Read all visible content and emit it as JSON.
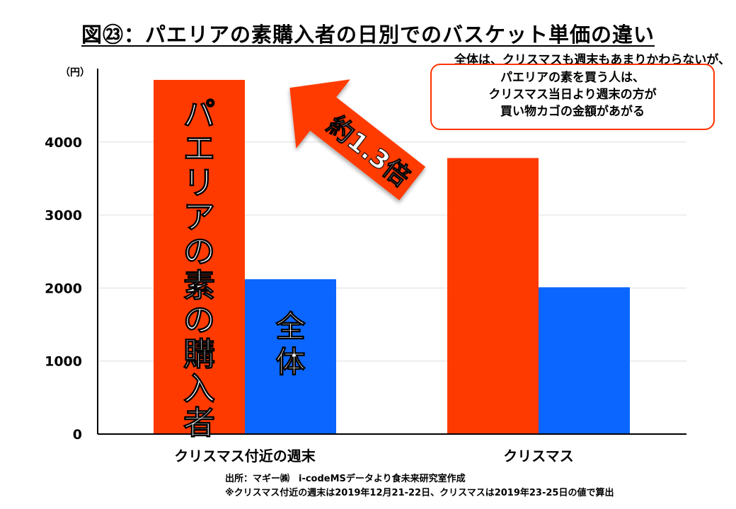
{
  "title": "図㉓：パエリアの素購入者の日別でのバスケット単価の違い",
  "callout": {
    "headline": "全体は、クリスマスも週末もあまりかわらないが、",
    "lines": [
      "パエリアの素を買う人は、",
      "クリスマス当日より週末の方が",
      "買い物カゴの金額があがる"
    ]
  },
  "arrow_label": "約1.3倍",
  "footnote": {
    "source": "出所：マギー㈱　i-codeMSデータより食未来研究室作成",
    "note": "※クリスマス付近の週末は2019年12月21-22日、クリスマスは2019年23-25日の値で算出"
  },
  "colors": {
    "paella": "#ff3a00",
    "overall": "#0a66ff",
    "callout_border": "#ff3300"
  },
  "chart_data": {
    "type": "bar",
    "categories": [
      "クリスマス付近の週末",
      "クリスマス"
    ],
    "series": [
      {
        "name": "パエリアの素の購入者",
        "values": [
          4850,
          3780
        ]
      },
      {
        "name": "全体",
        "values": [
          2120,
          2010
        ]
      }
    ],
    "ylabel": "（円）",
    "ylim": [
      0,
      4850
    ],
    "yticks": [
      0,
      1000,
      2000,
      3000,
      4000
    ],
    "grid": true,
    "legend": "on-bar labels"
  }
}
